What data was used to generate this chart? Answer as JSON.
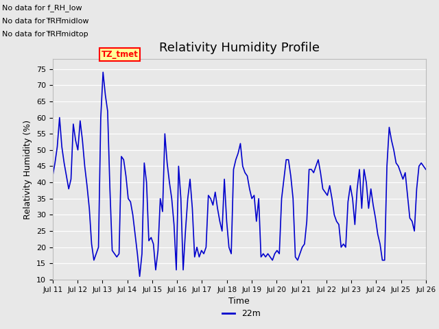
{
  "title": "Relativity Humidity Profile",
  "xlabel": "Time",
  "ylabel": "Relativity Humidity (%)",
  "ylim": [
    10,
    78
  ],
  "yticks": [
    10,
    15,
    20,
    25,
    30,
    35,
    40,
    45,
    50,
    55,
    60,
    65,
    70,
    75
  ],
  "line_color": "#0000CC",
  "line_width": 1.2,
  "bg_color": "#E8E8E8",
  "no_data_texts": [
    "No data for f_RH_low",
    "No data for f̅RH̅midlow",
    "No data for f̅RH̅midtop"
  ],
  "tz_label": "TZ_tmet",
  "legend_label": "22m",
  "x_tick_labels": [
    "Jul 11",
    "Jul 12",
    "Jul 13",
    "Jul 14",
    "Jul 15",
    "Jul 16",
    "Jul 17",
    "Jul 18",
    "Jul 19",
    "Jul 20",
    "Jul 21",
    "Jul 22",
    "Jul 23",
    "Jul 24",
    "Jul 25",
    "Jul 26"
  ],
  "y_values": [
    42,
    46,
    51,
    60,
    51,
    46,
    42,
    38,
    41,
    58,
    53,
    50,
    59,
    53,
    45,
    39,
    32,
    21,
    16,
    18,
    20,
    60,
    74,
    67,
    62,
    38,
    19,
    18,
    17,
    18,
    48,
    47,
    42,
    35,
    34,
    30,
    24,
    18,
    11,
    18,
    46,
    40,
    22,
    23,
    21,
    13,
    19,
    35,
    31,
    55,
    46,
    40,
    35,
    27,
    13,
    45,
    35,
    13,
    25,
    35,
    41,
    32,
    17,
    20,
    17,
    19,
    18,
    20,
    36,
    35,
    33,
    37,
    32,
    28,
    25,
    41,
    28,
    20,
    18,
    44,
    47,
    49,
    52,
    45,
    43,
    42,
    38,
    35,
    36,
    28,
    35,
    17,
    18,
    17,
    18,
    17,
    16,
    18,
    19,
    18,
    35,
    41,
    47,
    47,
    42,
    35,
    17,
    16,
    18,
    20,
    21,
    28,
    44,
    44,
    43,
    45,
    47,
    43,
    38,
    37,
    36,
    39,
    35,
    30,
    28,
    27,
    20,
    21,
    20,
    34,
    39,
    35,
    27,
    38,
    44,
    32,
    44,
    40,
    32,
    38,
    33,
    29,
    24,
    21,
    16,
    16,
    45,
    57,
    53,
    50,
    46,
    45,
    43,
    41,
    43,
    36,
    29,
    28,
    25,
    38,
    45,
    46,
    45,
    44
  ]
}
